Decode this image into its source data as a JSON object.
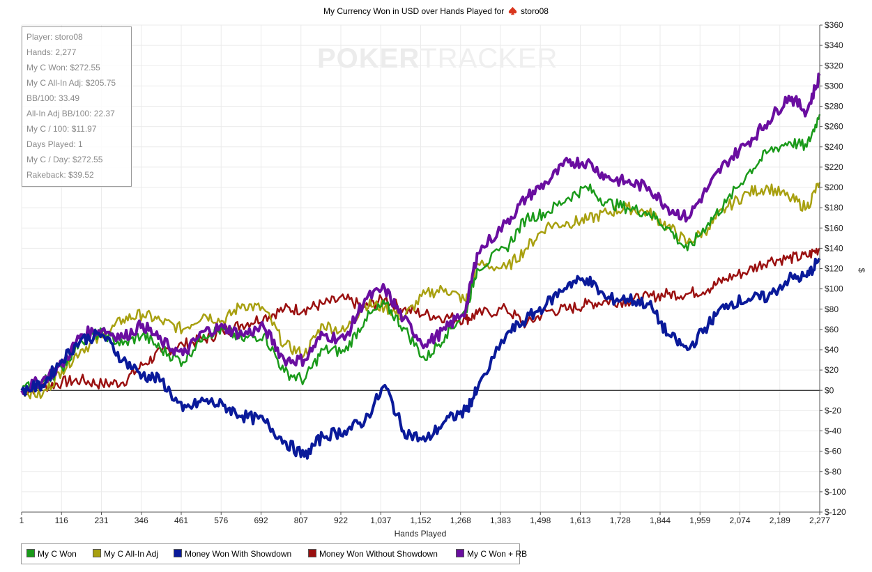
{
  "title": {
    "text_before": "My Currency Won in USD over Hands Played for",
    "player": "storo08"
  },
  "watermark": {
    "strong": "POKER",
    "light": "TRACKER"
  },
  "stats_box": [
    "Player: storo08",
    "Hands: 2,277",
    "My C Won: $272.55",
    "My C All-In Adj: $205.75",
    "BB/100: 33.49",
    "All-In Adj BB/100: 22.37",
    "My C / 100: $11.97",
    "Days Played: 1",
    "My C / Day: $272.55",
    "Rakeback: $39.52"
  ],
  "colors": {
    "my_c_won": "#1a9a1a",
    "all_in_adj": "#a8a010",
    "showdown": "#0a1a9a",
    "non_showdown": "#9a1010",
    "won_rb": "#6a0ea0",
    "grid": "#ebebeb",
    "zero_line": "#000000"
  },
  "chart_data": {
    "type": "line",
    "title": "My Currency Won in USD over Hands Played for storo08",
    "xlabel": "Hands Played",
    "ylabel": "$",
    "xlim": [
      1,
      2277
    ],
    "ylim": [
      -120,
      360
    ],
    "grid": true,
    "legend_position": "bottom-left",
    "x_tick_labels": [
      "1",
      "116",
      "231",
      "346",
      "461",
      "576",
      "692",
      "807",
      "922",
      "1,037",
      "1,152",
      "1,268",
      "1,383",
      "1,498",
      "1,613",
      "1,728",
      "1,844",
      "1,959",
      "2,074",
      "2,189",
      "2,277"
    ],
    "y_tick_labels": [
      "$-120",
      "$-100",
      "$-80",
      "$-60",
      "$-40",
      "$-20",
      "$0",
      "$20",
      "$40",
      "$60",
      "$80",
      "$100",
      "$120",
      "$140",
      "$160",
      "$180",
      "$200",
      "$220",
      "$240",
      "$260",
      "$280",
      "$300",
      "$320",
      "$340",
      "$360"
    ],
    "y_tick_values": [
      -120,
      -100,
      -80,
      -60,
      -40,
      -20,
      0,
      20,
      40,
      60,
      80,
      100,
      120,
      140,
      160,
      180,
      200,
      220,
      240,
      260,
      280,
      300,
      320,
      340,
      360
    ],
    "x": [
      1,
      60,
      116,
      170,
      231,
      290,
      346,
      400,
      461,
      520,
      576,
      630,
      692,
      750,
      807,
      860,
      922,
      980,
      1037,
      1090,
      1152,
      1210,
      1268,
      1300,
      1383,
      1440,
      1498,
      1560,
      1613,
      1670,
      1728,
      1790,
      1844,
      1900,
      1959,
      2010,
      2074,
      2130,
      2189,
      2240,
      2277
    ],
    "series": [
      {
        "name": "My C Won",
        "color_key": "my_c_won",
        "width": 2.5,
        "values": [
          0,
          8,
          22,
          50,
          57,
          45,
          55,
          40,
          28,
          55,
          60,
          50,
          55,
          18,
          10,
          40,
          38,
          70,
          85,
          62,
          30,
          55,
          78,
          120,
          140,
          170,
          175,
          190,
          200,
          185,
          180,
          175,
          160,
          138,
          165,
          185,
          215,
          235,
          245,
          240,
          272
        ]
      },
      {
        "name": "My C All-In Adj",
        "color_key": "all_in_adj",
        "width": 2.5,
        "values": [
          0,
          -5,
          20,
          40,
          52,
          70,
          75,
          68,
          60,
          75,
          68,
          85,
          80,
          45,
          35,
          65,
          58,
          85,
          82,
          72,
          95,
          100,
          88,
          125,
          120,
          140,
          162,
          165,
          168,
          175,
          180,
          175,
          162,
          145,
          160,
          180,
          195,
          200,
          190,
          180,
          205
        ]
      },
      {
        "name": "Money Won With Showdown",
        "color_key": "showdown",
        "width": 4,
        "values": [
          0,
          5,
          30,
          50,
          55,
          30,
          15,
          10,
          -20,
          -10,
          -15,
          -25,
          -30,
          -50,
          -65,
          -45,
          -40,
          -30,
          5,
          -40,
          -50,
          -30,
          -20,
          0,
          55,
          70,
          85,
          105,
          110,
          90,
          90,
          85,
          55,
          40,
          65,
          85,
          90,
          92,
          110,
          112,
          130
        ]
      },
      {
        "name": "Money Won Without Showdown",
        "color_key": "non_showdown",
        "width": 2.5,
        "values": [
          0,
          3,
          8,
          10,
          6,
          8,
          25,
          38,
          45,
          50,
          58,
          65,
          72,
          80,
          80,
          85,
          90,
          82,
          90,
          80,
          75,
          72,
          70,
          75,
          80,
          65,
          78,
          80,
          85,
          88,
          88,
          92,
          95,
          95,
          100,
          110,
          118,
          128,
          130,
          132,
          140
        ]
      },
      {
        "name": "My C Won + RB",
        "color_key": "won_rb",
        "width": 4,
        "values": [
          0,
          10,
          25,
          55,
          60,
          52,
          65,
          48,
          35,
          58,
          62,
          55,
          62,
          30,
          30,
          55,
          50,
          90,
          100,
          70,
          45,
          60,
          80,
          135,
          165,
          190,
          205,
          225,
          225,
          210,
          205,
          200,
          180,
          170,
          200,
          225,
          245,
          265,
          290,
          275,
          310
        ]
      }
    ]
  },
  "legend": [
    {
      "label": "My C Won",
      "color_key": "my_c_won"
    },
    {
      "label": "My C All-In Adj",
      "color_key": "all_in_adj"
    },
    {
      "label": "Money Won With Showdown",
      "color_key": "showdown"
    },
    {
      "label": "Money Won Without Showdown",
      "color_key": "non_showdown"
    },
    {
      "label": "My C Won + RB",
      "color_key": "won_rb"
    }
  ]
}
